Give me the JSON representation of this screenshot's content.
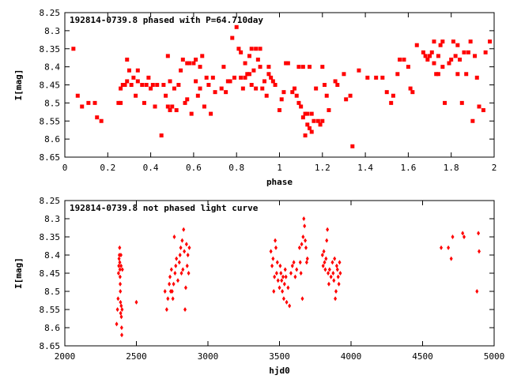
{
  "chart_data": [
    {
      "type": "scatter",
      "title": "192814-0739.8 phased with P=64.710day",
      "xlabel": "phase",
      "ylabel": "I[mag]",
      "xlim": [
        0,
        2
      ],
      "ylim": [
        8.65,
        8.25
      ],
      "y_inverted": true,
      "xticks": [
        "0",
        "0.2",
        "0.4",
        "0.6",
        "0.8",
        "1",
        "1.2",
        "1.4",
        "1.6",
        "1.8",
        "2"
      ],
      "yticks": [
        "8.25",
        "8.3",
        "8.35",
        "8.4",
        "8.45",
        "8.5",
        "8.55",
        "8.6",
        "8.65"
      ],
      "marker": "square",
      "color": "#ff0000",
      "points": [
        [
          0.04,
          8.35
        ],
        [
          0.06,
          8.48
        ],
        [
          0.08,
          8.51
        ],
        [
          0.11,
          8.5
        ],
        [
          0.14,
          8.5
        ],
        [
          0.15,
          8.54
        ],
        [
          0.17,
          8.55
        ],
        [
          0.25,
          8.5
        ],
        [
          0.26,
          8.5
        ],
        [
          0.26,
          8.46
        ],
        [
          0.27,
          8.45
        ],
        [
          0.28,
          8.45
        ],
        [
          0.29,
          8.44
        ],
        [
          0.29,
          8.38
        ],
        [
          0.3,
          8.41
        ],
        [
          0.31,
          8.45
        ],
        [
          0.32,
          8.43
        ],
        [
          0.33,
          8.48
        ],
        [
          0.34,
          8.44
        ],
        [
          0.34,
          8.41
        ],
        [
          0.36,
          8.45
        ],
        [
          0.37,
          8.5
        ],
        [
          0.38,
          8.45
        ],
        [
          0.39,
          8.43
        ],
        [
          0.4,
          8.46
        ],
        [
          0.41,
          8.45
        ],
        [
          0.42,
          8.51
        ],
        [
          0.43,
          8.45
        ],
        [
          0.45,
          8.59
        ],
        [
          0.46,
          8.45
        ],
        [
          0.47,
          8.48
        ],
        [
          0.48,
          8.51
        ],
        [
          0.48,
          8.37
        ],
        [
          0.49,
          8.44
        ],
        [
          0.49,
          8.52
        ],
        [
          0.5,
          8.51
        ],
        [
          0.51,
          8.46
        ],
        [
          0.52,
          8.52
        ],
        [
          0.53,
          8.45
        ],
        [
          0.54,
          8.41
        ],
        [
          0.55,
          8.38
        ],
        [
          0.56,
          8.5
        ],
        [
          0.57,
          8.39
        ],
        [
          0.57,
          8.49
        ],
        [
          0.58,
          8.39
        ],
        [
          0.59,
          8.53
        ],
        [
          0.6,
          8.39
        ],
        [
          0.61,
          8.44
        ],
        [
          0.61,
          8.38
        ],
        [
          0.62,
          8.48
        ],
        [
          0.63,
          8.46
        ],
        [
          0.63,
          8.4
        ],
        [
          0.64,
          8.37
        ],
        [
          0.65,
          8.51
        ],
        [
          0.66,
          8.43
        ],
        [
          0.67,
          8.45
        ],
        [
          0.68,
          8.53
        ],
        [
          0.69,
          8.43
        ],
        [
          0.7,
          8.47
        ],
        [
          0.73,
          8.46
        ],
        [
          0.74,
          8.4
        ],
        [
          0.75,
          8.47
        ],
        [
          0.76,
          8.44
        ],
        [
          0.77,
          8.44
        ],
        [
          0.78,
          8.32
        ],
        [
          0.79,
          8.43
        ],
        [
          0.8,
          8.29
        ],
        [
          0.81,
          8.35
        ],
        [
          0.82,
          8.43
        ],
        [
          0.82,
          8.36
        ],
        [
          0.83,
          8.46
        ],
        [
          0.84,
          8.43
        ],
        [
          0.84,
          8.39
        ],
        [
          0.85,
          8.42
        ],
        [
          0.86,
          8.42
        ],
        [
          0.86,
          8.37
        ],
        [
          0.87,
          8.45
        ],
        [
          0.87,
          8.35
        ],
        [
          0.88,
          8.41
        ],
        [
          0.89,
          8.35
        ],
        [
          0.89,
          8.46
        ],
        [
          0.9,
          8.38
        ],
        [
          0.91,
          8.4
        ],
        [
          0.91,
          8.35
        ],
        [
          0.92,
          8.46
        ],
        [
          0.93,
          8.44
        ],
        [
          0.94,
          8.48
        ],
        [
          0.95,
          8.42
        ],
        [
          0.95,
          8.4
        ],
        [
          0.96,
          8.43
        ],
        [
          0.97,
          8.44
        ],
        [
          0.98,
          8.45
        ],
        [
          1.0,
          8.52
        ],
        [
          1.01,
          8.49
        ],
        [
          1.02,
          8.47
        ],
        [
          1.03,
          8.39
        ],
        [
          1.04,
          8.39
        ],
        [
          1.06,
          8.47
        ],
        [
          1.07,
          8.46
        ],
        [
          1.08,
          8.48
        ],
        [
          1.09,
          8.4
        ],
        [
          1.09,
          8.5
        ],
        [
          1.1,
          8.51
        ],
        [
          1.11,
          8.54
        ],
        [
          1.11,
          8.4
        ],
        [
          1.12,
          8.53
        ],
        [
          1.12,
          8.59
        ],
        [
          1.13,
          8.53
        ],
        [
          1.13,
          8.56
        ],
        [
          1.14,
          8.57
        ],
        [
          1.14,
          8.4
        ],
        [
          1.15,
          8.53
        ],
        [
          1.15,
          8.58
        ],
        [
          1.16,
          8.55
        ],
        [
          1.17,
          8.46
        ],
        [
          1.18,
          8.55
        ],
        [
          1.19,
          8.56
        ],
        [
          1.2,
          8.55
        ],
        [
          1.2,
          8.4
        ],
        [
          1.21,
          8.45
        ],
        [
          1.22,
          8.48
        ],
        [
          1.23,
          8.52
        ],
        [
          1.26,
          8.44
        ],
        [
          1.27,
          8.45
        ],
        [
          1.3,
          8.42
        ],
        [
          1.31,
          8.49
        ],
        [
          1.33,
          8.48
        ],
        [
          1.34,
          8.62
        ],
        [
          1.37,
          8.41
        ],
        [
          1.41,
          8.43
        ],
        [
          1.45,
          8.43
        ],
        [
          1.48,
          8.43
        ],
        [
          1.5,
          8.47
        ],
        [
          1.52,
          8.5
        ],
        [
          1.53,
          8.48
        ],
        [
          1.55,
          8.42
        ],
        [
          1.56,
          8.38
        ],
        [
          1.58,
          8.38
        ],
        [
          1.6,
          8.4
        ],
        [
          1.61,
          8.46
        ],
        [
          1.62,
          8.47
        ],
        [
          1.64,
          8.34
        ],
        [
          1.67,
          8.36
        ],
        [
          1.68,
          8.37
        ],
        [
          1.69,
          8.38
        ],
        [
          1.7,
          8.37
        ],
        [
          1.71,
          8.36
        ],
        [
          1.72,
          8.39
        ],
        [
          1.72,
          8.33
        ],
        [
          1.73,
          8.42
        ],
        [
          1.74,
          8.37
        ],
        [
          1.74,
          8.42
        ],
        [
          1.75,
          8.34
        ],
        [
          1.76,
          8.4
        ],
        [
          1.76,
          8.33
        ],
        [
          1.77,
          8.5
        ],
        [
          1.79,
          8.39
        ],
        [
          1.8,
          8.38
        ],
        [
          1.81,
          8.33
        ],
        [
          1.82,
          8.37
        ],
        [
          1.83,
          8.34
        ],
        [
          1.83,
          8.42
        ],
        [
          1.84,
          8.38
        ],
        [
          1.85,
          8.5
        ],
        [
          1.86,
          8.36
        ],
        [
          1.87,
          8.42
        ],
        [
          1.88,
          8.36
        ],
        [
          1.89,
          8.33
        ],
        [
          1.9,
          8.55
        ],
        [
          1.91,
          8.37
        ],
        [
          1.92,
          8.43
        ],
        [
          1.93,
          8.51
        ],
        [
          1.95,
          8.52
        ],
        [
          1.96,
          8.36
        ],
        [
          1.98,
          8.33
        ]
      ]
    },
    {
      "type": "scatter",
      "title": "192814-0739.8 not phased light curve",
      "xlabel": "hjd0",
      "ylabel": "I[mag]",
      "xlim": [
        2000,
        5000
      ],
      "ylim": [
        8.65,
        8.25
      ],
      "y_inverted": true,
      "xticks": [
        "2000",
        "2500",
        "3000",
        "3500",
        "4000",
        "4500",
        "5000"
      ],
      "yticks": [
        "8.25",
        "8.3",
        "8.35",
        "8.4",
        "8.45",
        "8.5",
        "8.55",
        "8.6",
        "8.65"
      ],
      "marker": "diamond",
      "color": "#ff0000",
      "points": [
        [
          2362,
          8.59
        ],
        [
          2368,
          8.55
        ],
        [
          2372,
          8.52
        ],
        [
          2375,
          8.45
        ],
        [
          2377,
          8.43
        ],
        [
          2379,
          8.41
        ],
        [
          2381,
          8.4
        ],
        [
          2383,
          8.38
        ],
        [
          2384,
          8.42
        ],
        [
          2385,
          8.44
        ],
        [
          2386,
          8.46
        ],
        [
          2387,
          8.48
        ],
        [
          2388,
          8.5
        ],
        [
          2389,
          8.53
        ],
        [
          2390,
          8.56
        ],
        [
          2392,
          8.4
        ],
        [
          2393,
          8.43
        ],
        [
          2394,
          8.54
        ],
        [
          2395,
          8.57
        ],
        [
          2397,
          8.6
        ],
        [
          2398,
          8.62
        ],
        [
          2400,
          8.55
        ],
        [
          2402,
          8.44
        ],
        [
          2500,
          8.53
        ],
        [
          2700,
          8.5
        ],
        [
          2712,
          8.55
        ],
        [
          2720,
          8.52
        ],
        [
          2730,
          8.48
        ],
        [
          2735,
          8.46
        ],
        [
          2740,
          8.5
        ],
        [
          2745,
          8.44
        ],
        [
          2750,
          8.5
        ],
        [
          2755,
          8.52
        ],
        [
          2760,
          8.48
        ],
        [
          2765,
          8.35
        ],
        [
          2770,
          8.45
        ],
        [
          2775,
          8.43
        ],
        [
          2780,
          8.41
        ],
        [
          2790,
          8.47
        ],
        [
          2800,
          8.42
        ],
        [
          2805,
          8.4
        ],
        [
          2810,
          8.38
        ],
        [
          2815,
          8.45
        ],
        [
          2820,
          8.36
        ],
        [
          2825,
          8.44
        ],
        [
          2830,
          8.33
        ],
        [
          2835,
          8.39
        ],
        [
          2840,
          8.55
        ],
        [
          2845,
          8.49
        ],
        [
          2850,
          8.37
        ],
        [
          2855,
          8.43
        ],
        [
          2860,
          8.4
        ],
        [
          2865,
          8.45
        ],
        [
          2870,
          8.38
        ],
        [
          3440,
          8.39
        ],
        [
          3448,
          8.43
        ],
        [
          3455,
          8.41
        ],
        [
          3460,
          8.5
        ],
        [
          3465,
          8.46
        ],
        [
          3470,
          8.36
        ],
        [
          3475,
          8.38
        ],
        [
          3480,
          8.45
        ],
        [
          3485,
          8.42
        ],
        [
          3490,
          8.47
        ],
        [
          3500,
          8.49
        ],
        [
          3505,
          8.43
        ],
        [
          3510,
          8.45
        ],
        [
          3515,
          8.47
        ],
        [
          3520,
          8.5
        ],
        [
          3525,
          8.46
        ],
        [
          3530,
          8.52
        ],
        [
          3535,
          8.48
        ],
        [
          3540,
          8.44
        ],
        [
          3545,
          8.46
        ],
        [
          3550,
          8.53
        ],
        [
          3560,
          8.49
        ],
        [
          3570,
          8.54
        ],
        [
          3580,
          8.45
        ],
        [
          3590,
          8.43
        ],
        [
          3600,
          8.42
        ],
        [
          3610,
          8.46
        ],
        [
          3620,
          8.44
        ],
        [
          3640,
          8.38
        ],
        [
          3645,
          8.42
        ],
        [
          3650,
          8.45
        ],
        [
          3655,
          8.37
        ],
        [
          3660,
          8.52
        ],
        [
          3665,
          8.35
        ],
        [
          3670,
          8.3
        ],
        [
          3675,
          8.32
        ],
        [
          3680,
          8.36
        ],
        [
          3685,
          8.38
        ],
        [
          3690,
          8.42
        ],
        [
          3695,
          8.41
        ],
        [
          3800,
          8.4
        ],
        [
          3805,
          8.43
        ],
        [
          3810,
          8.39
        ],
        [
          3815,
          8.42
        ],
        [
          3820,
          8.44
        ],
        [
          3825,
          8.41
        ],
        [
          3830,
          8.36
        ],
        [
          3835,
          8.33
        ],
        [
          3840,
          8.45
        ],
        [
          3845,
          8.48
        ],
        [
          3850,
          8.44
        ],
        [
          3860,
          8.46
        ],
        [
          3870,
          8.42
        ],
        [
          3875,
          8.45
        ],
        [
          3880,
          8.47
        ],
        [
          3885,
          8.41
        ],
        [
          3890,
          8.52
        ],
        [
          3895,
          8.5
        ],
        [
          3900,
          8.43
        ],
        [
          3905,
          8.44
        ],
        [
          3910,
          8.46
        ],
        [
          3915,
          8.48
        ],
        [
          3920,
          8.42
        ],
        [
          3925,
          8.45
        ],
        [
          4630,
          8.38
        ],
        [
          4680,
          8.38
        ],
        [
          4700,
          8.41
        ],
        [
          4710,
          8.35
        ],
        [
          4780,
          8.34
        ],
        [
          4790,
          8.35
        ],
        [
          4880,
          8.5
        ],
        [
          4890,
          8.34
        ],
        [
          4895,
          8.39
        ]
      ]
    }
  ]
}
